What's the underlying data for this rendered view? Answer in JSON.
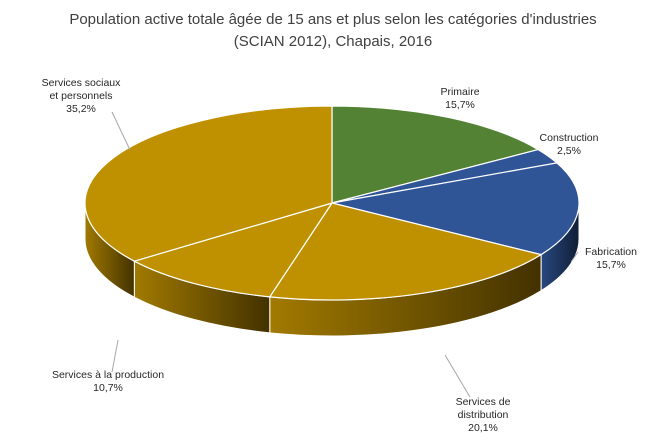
{
  "chart_data": {
    "type": "pie",
    "title_lines": [
      "Population active totale âgée de 15 ans et plus selon les catégories d'industries",
      "(SCIAN 2012), Chapais, 2016"
    ],
    "slices": [
      {
        "label_lines": [
          "Primaire"
        ],
        "value": 15.7,
        "display": "15,7%",
        "color": "#548235"
      },
      {
        "label_lines": [
          "Construction"
        ],
        "value": 2.5,
        "display": "2,5%",
        "color": "#2F5597"
      },
      {
        "label_lines": [
          "Fabrication"
        ],
        "value": 15.7,
        "display": "15,7%",
        "color": "#2F5597"
      },
      {
        "label_lines": [
          "Services de",
          "distribution"
        ],
        "value": 20.1,
        "display": "20,1%",
        "color": "#BF9000"
      },
      {
        "label_lines": [
          "Services à la production"
        ],
        "value": 10.7,
        "display": "10,7%",
        "color": "#BF9000"
      },
      {
        "label_lines": [
          "Services sociaux",
          "et personnels"
        ],
        "value": 35.2,
        "display": "35,2%",
        "color": "#BF9000"
      }
    ],
    "style": "3d-pie",
    "legend": "none"
  }
}
